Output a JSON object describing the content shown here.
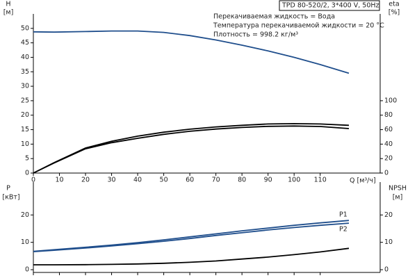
{
  "chart_data": [
    {
      "type": "line",
      "title": "TPD 80-520/2, 3*400 V, 50Hz",
      "annotations": [
        "Перекачиваемая жидкость = Вода",
        "Температура перекачиваемой жидкости = 20 °C",
        "Плотность = 998.2 кг/м³"
      ],
      "y_label": "H",
      "y_unit": "[м]",
      "y2_label": "eta",
      "y2_unit": "[%]",
      "x_label": "Q [м³/ч]",
      "x": [
        0,
        8,
        20,
        30,
        40,
        50,
        60,
        70,
        80,
        90,
        100,
        110,
        121
      ],
      "xlim": [
        0,
        133
      ],
      "xticks": [
        0,
        10,
        20,
        30,
        40,
        50,
        60,
        70,
        80,
        90,
        100,
        110
      ],
      "ylim": [
        0,
        55
      ],
      "yticks": [
        0,
        5,
        10,
        15,
        20,
        25,
        30,
        35,
        40,
        45,
        50
      ],
      "y2lim": [
        0,
        220
      ],
      "y2ticks": [
        0,
        20,
        40,
        60,
        80,
        100
      ],
      "series": [
        {
          "color": "#1f4e8c",
          "values": [
            48.8,
            48.7,
            48.9,
            49.1,
            49.1,
            48.6,
            47.5,
            46.0,
            44.2,
            42.2,
            40.0,
            37.5,
            34.5
          ]
        },
        {
          "color": "#000000",
          "axis": "y2",
          "values": [
            0,
            14.5,
            34.6,
            44,
            51,
            56.5,
            60.6,
            63.8,
            66,
            67.8,
            68.3,
            67.8,
            66
          ]
        },
        {
          "color": "#000000",
          "axis": "y2",
          "values": [
            0,
            14,
            33.5,
            42,
            48,
            53.5,
            57.7,
            60.8,
            63,
            64.6,
            65,
            64.4,
            61.5
          ]
        }
      ]
    },
    {
      "type": "line",
      "y_label": "P",
      "y_unit": "[кВт]",
      "y2_label": "NPSH",
      "y2_unit": "[м]",
      "x": [
        0,
        8,
        20,
        30,
        40,
        50,
        60,
        70,
        80,
        90,
        100,
        110,
        121
      ],
      "xlim": [
        0,
        133
      ],
      "ylim": [
        -1,
        32
      ],
      "yticks": [
        0,
        10,
        20
      ],
      "y2lim": [
        -1,
        32
      ],
      "y2ticks": [
        0,
        10,
        20
      ],
      "series": [
        {
          "name": "P1",
          "color": "#1f4e8c",
          "values": [
            6.7,
            7.3,
            8.2,
            9.0,
            9.9,
            10.9,
            12.0,
            13.1,
            14.2,
            15.2,
            16.2,
            17.1,
            18.0
          ]
        },
        {
          "name": "P2",
          "color": "#1f4e8c",
          "values": [
            6.6,
            7.1,
            7.9,
            8.7,
            9.5,
            10.4,
            11.4,
            12.5,
            13.5,
            14.5,
            15.4,
            16.2,
            17.0
          ]
        },
        {
          "color": "#000000",
          "axis": "y2",
          "values": [
            1.8,
            1.8,
            1.85,
            1.95,
            2.1,
            2.35,
            2.7,
            3.2,
            3.9,
            4.6,
            5.5,
            6.5,
            7.8
          ]
        }
      ]
    }
  ]
}
